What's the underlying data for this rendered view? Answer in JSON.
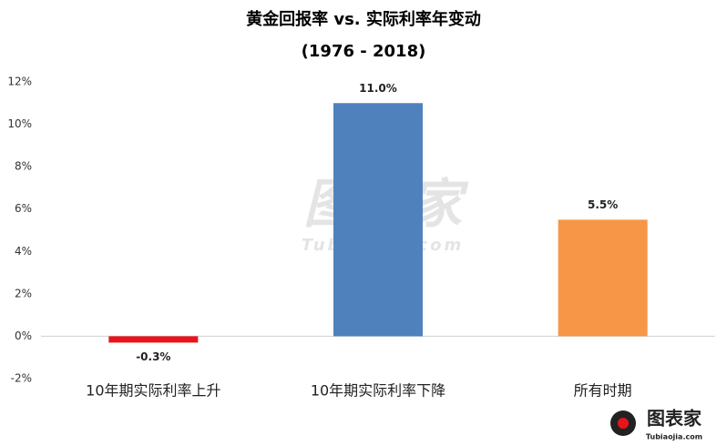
{
  "chart_data": {
    "type": "bar",
    "title": "黄金回报率 vs. 实际利率年变动",
    "subtitle": "(1976 - 2018)",
    "categories": [
      "10年期实际利率上升",
      "10年期实际利率下降",
      "所有时期"
    ],
    "values": [
      -0.3,
      11.0,
      5.5
    ],
    "value_labels": [
      "-0.3%",
      "11.0%",
      "5.5%"
    ],
    "colors": [
      "#e8141b",
      "#4f81bd",
      "#f79646"
    ],
    "ylim": [
      -2,
      12
    ],
    "yticks": [
      {
        "value": -2,
        "label": "-2%"
      },
      {
        "value": 0,
        "label": "0%"
      },
      {
        "value": 2,
        "label": "2%"
      },
      {
        "value": 4,
        "label": "4%"
      },
      {
        "value": 6,
        "label": "6%"
      },
      {
        "value": 8,
        "label": "8%"
      },
      {
        "value": 10,
        "label": "10%"
      },
      {
        "value": 12,
        "label": "12%"
      }
    ],
    "grid": false,
    "watermark": "图表家",
    "watermark_url": "Tubiaojia.com",
    "logo": "图表家",
    "logo_url": "Tubiaojia.com"
  }
}
